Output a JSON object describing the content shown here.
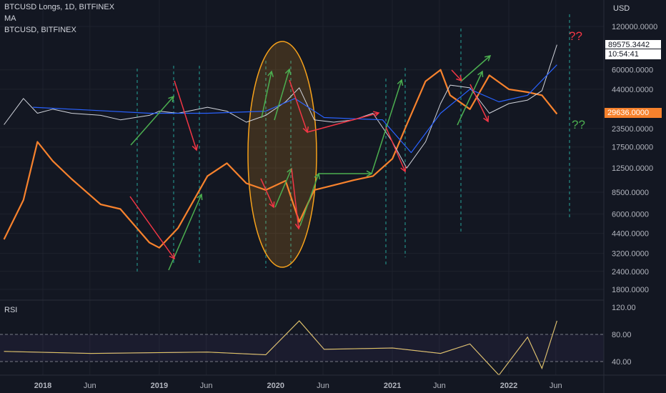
{
  "legend": {
    "title": "BTCUSD Longs, 1D, BITFINEX",
    "ma": "MA",
    "series2": "BTCUSD, BITFINEX"
  },
  "price_axis": {
    "currency": "USD",
    "ticks": [
      "120000.0000",
      "60000.0000",
      "44000.0000",
      "23500.0000",
      "17500.0000",
      "12500.0000",
      "8500.0000",
      "6000.0000",
      "4400.0000",
      "3200.0000",
      "2400.0000",
      "1800.0000"
    ]
  },
  "price_tags": {
    "btcusd_last": "89575.3442",
    "countdown": "10:54:41",
    "longs_last": "29636.0000"
  },
  "rsi": {
    "label": "RSI",
    "ticks": [
      "120.00",
      "80.00",
      "40.00"
    ]
  },
  "time_axis": [
    "2018",
    "Jun",
    "2019",
    "Jun",
    "2020",
    "Jun",
    "2021",
    "Jun",
    "2022",
    "Jun"
  ],
  "annotations": {
    "upper_question": "??",
    "lower_question": "??"
  },
  "colors": {
    "background": "#131722",
    "longs": "#f7822d",
    "btcusd": "#d1d4dc",
    "ma": "#2962ff",
    "rsi": "#7e57c2",
    "rsi_ma": "#ffeb3b",
    "up_arrow": "#4caf50",
    "down_arrow": "#f23645",
    "vline": "#26a69a",
    "ellipse": "#f7a21b"
  },
  "chart_data": {
    "type": "line",
    "y_scale": "log",
    "ylim": [
      1500,
      150000
    ],
    "series": [
      {
        "name": "BTCUSD Longs",
        "x": [
          "2017-09-01",
          "2017-11-01",
          "2017-12-15",
          "2018-02-01",
          "2018-04-01",
          "2018-07-01",
          "2018-09-01",
          "2018-12-01",
          "2019-01-01",
          "2019-03-01",
          "2019-06-01",
          "2019-08-01",
          "2019-10-01",
          "2019-12-01",
          "2020-02-01",
          "2020-03-15",
          "2020-05-01",
          "2020-07-01",
          "2020-09-01",
          "2020-11-01",
          "2021-01-01",
          "2021-02-15",
          "2021-04-15",
          "2021-06-01",
          "2021-07-01",
          "2021-09-01",
          "2021-11-01",
          "2022-01-01",
          "2022-03-01",
          "2022-04-15",
          "2022-06-01"
        ],
        "y": [
          4000,
          7500,
          19000,
          14000,
          10500,
          7000,
          6500,
          3800,
          3500,
          4800,
          11000,
          13500,
          9800,
          8800,
          10200,
          5300,
          8800,
          9500,
          10300,
          11000,
          14500,
          25000,
          50000,
          60000,
          40000,
          32000,
          55000,
          44000,
          42000,
          40000,
          29636
        ]
      },
      {
        "name": "BTCUSD",
        "x": [
          "2017-09-01",
          "2017-11-01",
          "2017-12-15",
          "2018-02-01",
          "2018-04-01",
          "2018-07-01",
          "2018-09-01",
          "2018-12-01",
          "2019-01-01",
          "2019-03-01",
          "2019-06-01",
          "2019-08-01",
          "2019-10-01",
          "2019-12-01",
          "2020-02-01",
          "2020-03-15",
          "2020-05-01",
          "2020-07-01",
          "2020-09-01",
          "2020-11-01",
          "2021-01-01",
          "2021-02-15",
          "2021-04-15",
          "2021-06-01",
          "2021-07-01",
          "2021-09-01",
          "2021-11-01",
          "2022-01-01",
          "2022-03-01",
          "2022-04-15",
          "2022-06-01"
        ],
        "y": [
          25000,
          38000,
          30000,
          32000,
          30000,
          29000,
          27000,
          29000,
          31000,
          30000,
          33000,
          31000,
          26000,
          29000,
          36000,
          45000,
          27000,
          26000,
          27000,
          30000,
          19000,
          12500,
          19000,
          35000,
          47000,
          45000,
          30000,
          35000,
          37000,
          43000,
          89575
        ]
      },
      {
        "name": "MA",
        "x": [
          "2017-12-01",
          "2018-06-01",
          "2018-12-01",
          "2019-06-01",
          "2019-12-01",
          "2020-03-01",
          "2020-06-01",
          "2020-12-01",
          "2021-03-01",
          "2021-06-01",
          "2021-09-01",
          "2021-12-01",
          "2022-03-01",
          "2022-06-01"
        ],
        "y": [
          33000,
          31500,
          30000,
          30000,
          31000,
          38000,
          28000,
          27000,
          16000,
          30000,
          44000,
          36000,
          40000,
          65000
        ]
      },
      {
        "name": "RSI",
        "x": [
          "2017-09-01",
          "2018-06-01",
          "2019-06-01",
          "2019-12-01",
          "2020-03-15",
          "2020-06-01",
          "2021-01-01",
          "2021-06-01",
          "2021-09-01",
          "2021-12-01",
          "2022-03-01",
          "2022-04-15",
          "2022-06-01"
        ],
        "y": [
          55,
          52,
          54,
          50,
          100,
          58,
          60,
          52,
          66,
          20,
          76,
          30,
          100
        ]
      }
    ]
  }
}
